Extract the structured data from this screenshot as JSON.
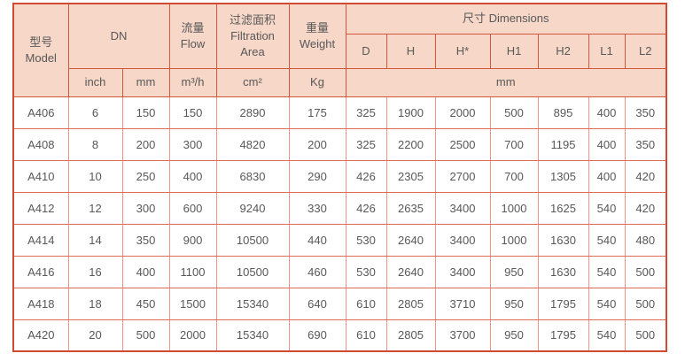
{
  "table": {
    "header": {
      "model": {
        "cn": "型号",
        "en": "Model"
      },
      "dn": "DN",
      "flow": {
        "cn": "流量",
        "en": "Flow"
      },
      "filtration": {
        "cn": "过滤面积",
        "en1": "Filtration",
        "en2": "Area"
      },
      "weight": {
        "cn": "重量",
        "en": "Weight"
      },
      "dimensions": "尺寸 Dimensions",
      "dim_cols": [
        "D",
        "H",
        "H*",
        "H1",
        "H2",
        "L1",
        "L2"
      ],
      "units": {
        "inch": "inch",
        "mm": "mm",
        "flow": "m³/h",
        "area": "cm²",
        "weight": "Kg",
        "dims": "mm"
      }
    },
    "column_keys": [
      "model",
      "dn-inch",
      "dn-mm",
      "flow",
      "filtration-area",
      "weight",
      "dim-d",
      "dim-h",
      "dim-h-star",
      "dim-h1",
      "dim-h2",
      "dim-l1",
      "dim-l2"
    ],
    "rows": [
      [
        "A406",
        "6",
        "150",
        "150",
        "2890",
        "175",
        "325",
        "1900",
        "2000",
        "500",
        "895",
        "400",
        "350"
      ],
      [
        "A408",
        "8",
        "200",
        "300",
        "4820",
        "200",
        "325",
        "2200",
        "2500",
        "700",
        "1195",
        "400",
        "350"
      ],
      [
        "A410",
        "10",
        "250",
        "400",
        "6830",
        "290",
        "426",
        "2305",
        "2700",
        "700",
        "1305",
        "400",
        "420"
      ],
      [
        "A412",
        "12",
        "300",
        "600",
        "9240",
        "330",
        "426",
        "2635",
        "3400",
        "1000",
        "1625",
        "540",
        "420"
      ],
      [
        "A414",
        "14",
        "350",
        "900",
        "10500",
        "440",
        "530",
        "2640",
        "3400",
        "1000",
        "1630",
        "540",
        "480"
      ],
      [
        "A416",
        "16",
        "400",
        "1100",
        "10500",
        "460",
        "530",
        "2640",
        "3400",
        "950",
        "1630",
        "540",
        "500"
      ],
      [
        "A418",
        "18",
        "450",
        "1500",
        "15340",
        "640",
        "610",
        "2805",
        "3710",
        "950",
        "1795",
        "540",
        "500"
      ],
      [
        "A420",
        "20",
        "500",
        "2000",
        "15340",
        "690",
        "610",
        "2805",
        "3700",
        "950",
        "1795",
        "540",
        "500"
      ]
    ]
  },
  "colors": {
    "header_bg": "#f6d7c8",
    "header_border": "#d4573c",
    "outer_border": "#d14b32",
    "data_border_vertical": "#f09488",
    "data_border_horizontal": "#e06a5c",
    "text": "#585858"
  }
}
